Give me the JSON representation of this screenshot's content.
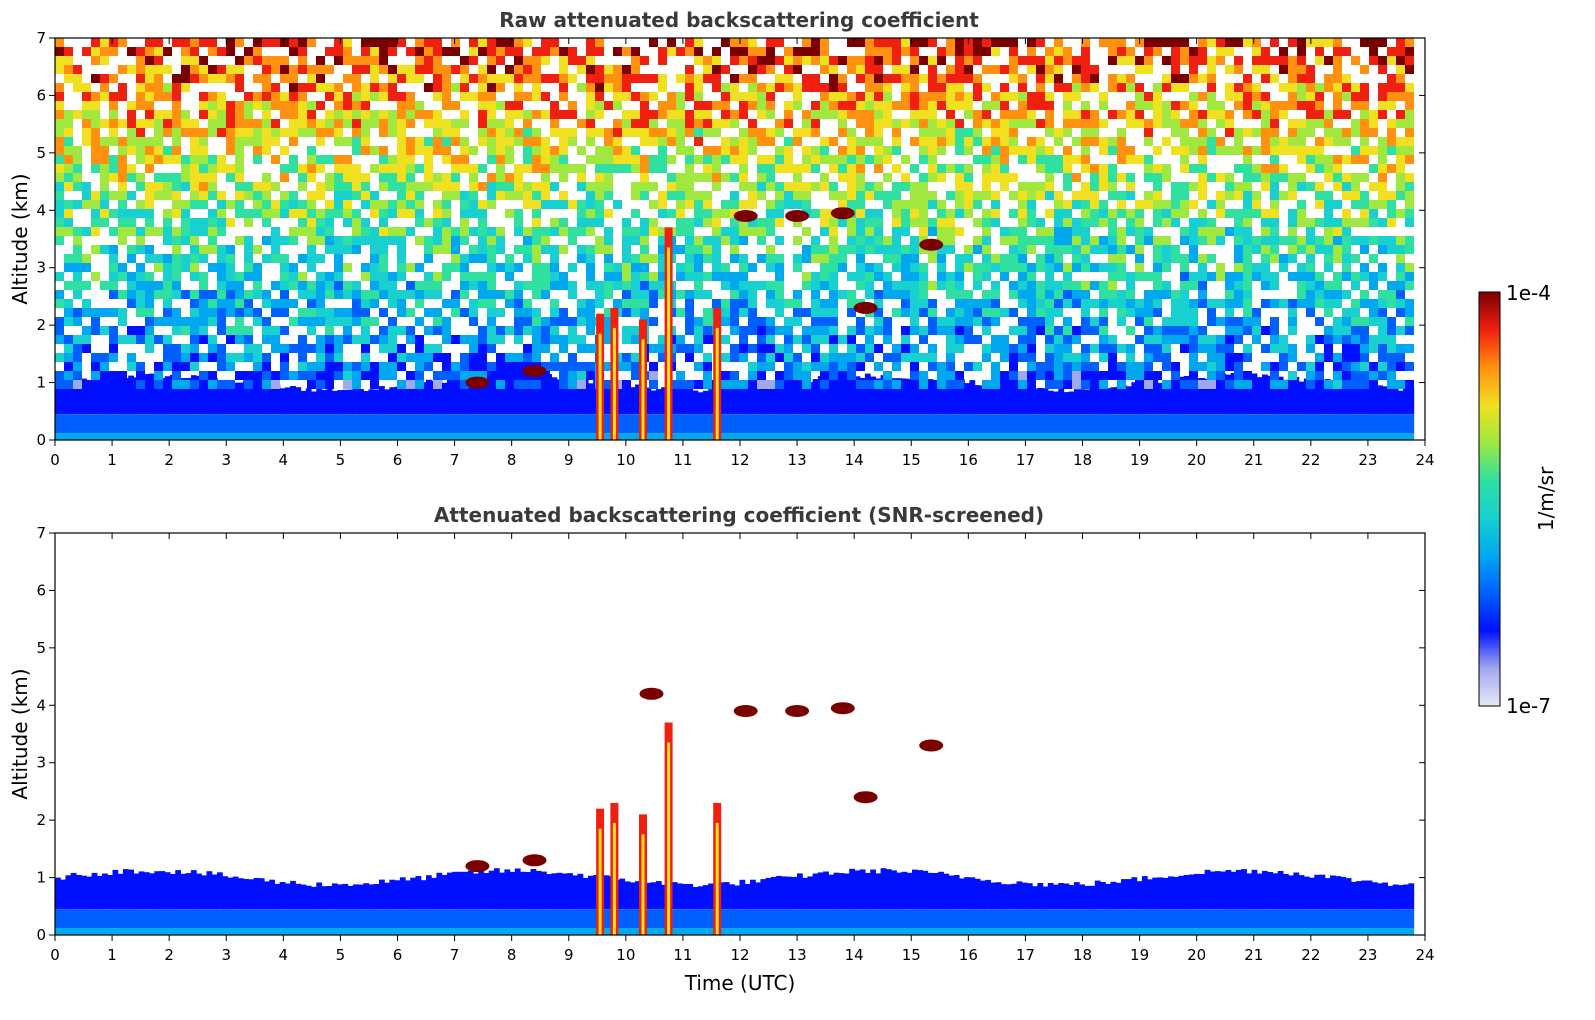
{
  "chart_data": [
    {
      "type": "heatmap",
      "title": "Raw attenuated backscattering coefficient",
      "xlabel": "",
      "ylabel": "Altitude (km)",
      "xlim": [
        0,
        24
      ],
      "ylim": [
        0,
        7
      ],
      "xticks": [
        "0",
        "1",
        "2",
        "3",
        "4",
        "5",
        "6",
        "7",
        "8",
        "9",
        "10",
        "11",
        "12",
        "13",
        "14",
        "15",
        "16",
        "17",
        "18",
        "19",
        "20",
        "21",
        "22",
        "23",
        "24"
      ],
      "yticks": [
        "0",
        "1",
        "2",
        "3",
        "4",
        "5",
        "6",
        "7"
      ],
      "data_end_time": 23.8,
      "boundary_layer_top_km": 1.0,
      "noise_above_boundary_layer": true,
      "cloud_columns": [
        {
          "time": 9.55,
          "top_km": 2.2
        },
        {
          "time": 9.8,
          "top_km": 2.3
        },
        {
          "time": 10.3,
          "top_km": 2.1
        },
        {
          "time": 10.75,
          "top_km": 3.7
        },
        {
          "time": 11.6,
          "top_km": 2.3
        }
      ],
      "cloud_patches": [
        {
          "time": 12.1,
          "alt_km": 3.9
        },
        {
          "time": 13.0,
          "alt_km": 3.9
        },
        {
          "time": 13.8,
          "alt_km": 3.95
        },
        {
          "time": 15.35,
          "alt_km": 3.4
        },
        {
          "time": 7.4,
          "alt_km": 1.0
        },
        {
          "time": 8.4,
          "alt_km": 1.2
        },
        {
          "time": 14.2,
          "alt_km": 2.3
        }
      ]
    },
    {
      "type": "heatmap",
      "title": "Attenuated backscattering coefficient (SNR-screened)",
      "xlabel": "Time (UTC)",
      "ylabel": "Altitude (km)",
      "xlim": [
        0,
        24
      ],
      "ylim": [
        0,
        7
      ],
      "xticks": [
        "0",
        "1",
        "2",
        "3",
        "4",
        "5",
        "6",
        "7",
        "8",
        "9",
        "10",
        "11",
        "12",
        "13",
        "14",
        "15",
        "16",
        "17",
        "18",
        "19",
        "20",
        "21",
        "22",
        "23",
        "24"
      ],
      "yticks": [
        "0",
        "1",
        "2",
        "3",
        "4",
        "5",
        "6",
        "7"
      ],
      "data_end_time": 23.8,
      "boundary_layer_top_km": 1.0,
      "noise_above_boundary_layer": false,
      "cloud_columns": [
        {
          "time": 9.55,
          "top_km": 2.2
        },
        {
          "time": 9.8,
          "top_km": 2.3
        },
        {
          "time": 10.3,
          "top_km": 2.1
        },
        {
          "time": 10.75,
          "top_km": 3.7
        },
        {
          "time": 11.6,
          "top_km": 2.3
        }
      ],
      "cloud_patches": [
        {
          "time": 12.1,
          "alt_km": 3.9
        },
        {
          "time": 13.0,
          "alt_km": 3.9
        },
        {
          "time": 13.8,
          "alt_km": 3.95
        },
        {
          "time": 15.35,
          "alt_km": 3.3
        },
        {
          "time": 7.4,
          "alt_km": 1.2
        },
        {
          "time": 8.4,
          "alt_km": 1.3
        },
        {
          "time": 14.2,
          "alt_km": 2.4
        },
        {
          "time": 10.45,
          "alt_km": 4.2
        }
      ]
    }
  ],
  "colorbar": {
    "label": "1/m/sr",
    "max_label": "1e-4",
    "min_label": "1e-7",
    "scale": "log",
    "colors": [
      "#e8e8f8",
      "#a0a8f0",
      "#0010ff",
      "#0060ff",
      "#00a8f0",
      "#18d0d0",
      "#30e0a0",
      "#a0e840",
      "#f0e020",
      "#ff9010",
      "#f02010",
      "#7a0000"
    ]
  }
}
